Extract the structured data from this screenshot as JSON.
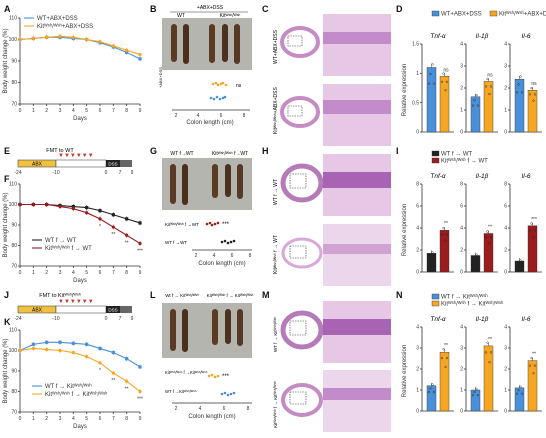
{
  "figure": {
    "panels": {
      "A": {
        "label": "A"
      },
      "B": {
        "label": "B"
      },
      "C": {
        "label": "C"
      },
      "D": {
        "label": "D"
      },
      "E": {
        "label": "E"
      },
      "F": {
        "label": "F"
      },
      "G": {
        "label": "G"
      },
      "H": {
        "label": "H"
      },
      "I": {
        "label": "I"
      },
      "J": {
        "label": "J"
      },
      "K": {
        "label": "K"
      },
      "L": {
        "label": "L"
      },
      "M": {
        "label": "M"
      },
      "N": {
        "label": "N"
      }
    },
    "texts": {
      "B_header": "+ABX+DSS",
      "B_wt": "WT",
      "B_kit": "Kitᵂˢʰ/ᵂˢʰ",
      "B_strip_label": "+ABX+DSS",
      "B_ns": "ns",
      "C_row1": "WT+ABX+DSS",
      "C_row2": "Kitᵂˢʰ/ᵂˢʰ+ABX+DSS",
      "E_top": "FMT to WT",
      "E_abx": "ABX",
      "E_dss": "DSS",
      "E_ticks": [
        "-24",
        "-10",
        "0",
        "7",
        "9"
      ],
      "G_header_a": "WT f→WT",
      "G_header_b": "Kitᵂˢʰ/ᵂˢʰ f→WT",
      "G_row1": "Kitᵂˢʰ/ᵂˢʰ f →WT",
      "G_row2": "WT f →WT",
      "G_sig": "***",
      "H_row1": "WT f → WT",
      "H_row2": "Kitᵂˢʰ/ᵂˢʰ f → WT",
      "J_top": "FMT to Kitᵂˢʰ/ᵂˢʰ",
      "L_header_a": "Wt f → Kitᵂˢʰ/ᵂˢʰ",
      "L_header_b": "Kitᵂˢʰ/ᵂˢʰ f → Kitᵂˢʰ/ᵂˢʰ",
      "L_row1": "Kitᵂˢʰ/ᵂˢʰ f →Kitᵂˢʰ/ᵂˢʰ",
      "L_row2": "WT f →Kitᵂˢʰ/ᵂˢʰ",
      "M_row1": "WT f → Kitᵂˢʰ/ᵂˢʰ",
      "M_row2": "Kitᵂˢʰ/ᵂˢʰ f → Kitᵂˢʰ/ᵂˢʰ",
      "colon_xlabel": "Colon length (cm)",
      "days_label": "Days",
      "bw_label": "Body weight change (%)",
      "rel_expr": "Relative expression",
      "genes": [
        "Tnf-α",
        "Il-1β",
        "Il-6"
      ]
    },
    "colors": {
      "blue": "#4a90d9",
      "orange": "#f5a623",
      "black": "#222222",
      "darkred": "#9b1c1c",
      "abx_bar": "#f0c040",
      "he_pink": "#d8a8d8"
    }
  },
  "chart_data": [
    {
      "panel": "A",
      "type": "line",
      "xlabel": "Days",
      "ylabel": "Body weight change (%)",
      "xlim": [
        0,
        9
      ],
      "ylim": [
        70,
        110
      ],
      "xticks": [
        0,
        1,
        2,
        3,
        4,
        5,
        6,
        7,
        8,
        9
      ],
      "yticks": [
        70,
        80,
        90,
        100,
        110
      ],
      "x": [
        0,
        1,
        2,
        3,
        4,
        5,
        6,
        7,
        8,
        9
      ],
      "series": [
        {
          "name": "WT+ABX+DSS",
          "color": "#4a90d9",
          "values": [
            100,
            100.5,
            101,
            101,
            100.5,
            100,
            98.5,
            96.5,
            94,
            91
          ]
        },
        {
          "name": "Kitᵂˢʰ/ᵂˢʰ+ABX+DSS",
          "color": "#f5a623",
          "values": [
            100,
            100.5,
            101,
            101.5,
            101,
            100,
            99,
            97,
            95,
            93
          ]
        }
      ]
    },
    {
      "panel": "D",
      "type": "bar",
      "ylabel": "Relative expression",
      "subplots": [
        {
          "gene": "Tnf-α",
          "ylim": [
            0,
            1.5
          ],
          "yticks": [
            0,
            0.5,
            1.0,
            1.5
          ],
          "values": [
            1.1,
            0.95
          ],
          "sig": "ns"
        },
        {
          "gene": "Il-1β",
          "ylim": [
            0,
            4
          ],
          "yticks": [
            0,
            1,
            2,
            3,
            4
          ],
          "values": [
            1.6,
            2.3
          ],
          "sig": "ns"
        },
        {
          "gene": "Il-6",
          "ylim": [
            0,
            4
          ],
          "yticks": [
            0,
            1,
            2,
            3,
            4
          ],
          "values": [
            2.4,
            1.9
          ],
          "sig": "ns"
        }
      ],
      "series": [
        {
          "name": "WT+ABX+DSS",
          "color": "#4a90d9"
        },
        {
          "name": "Kitᵂˢʰ/ᵂˢʰ+ABX+DSS",
          "color": "#f5a623"
        }
      ]
    },
    {
      "panel": "F",
      "type": "line",
      "xlabel": "Days",
      "ylabel": "Body weight change (%)",
      "xlim": [
        0,
        9
      ],
      "ylim": [
        70,
        110
      ],
      "xticks": [
        0,
        1,
        2,
        3,
        4,
        5,
        6,
        7,
        8,
        9
      ],
      "yticks": [
        70,
        80,
        90,
        100,
        110
      ],
      "x": [
        0,
        1,
        2,
        3,
        4,
        5,
        6,
        7,
        8,
        9
      ],
      "series": [
        {
          "name": "WT f → WT",
          "color": "#222222",
          "values": [
            100,
            100,
            100,
            99.5,
            99,
            98.5,
            97,
            95,
            93,
            91
          ]
        },
        {
          "name": "Kitᵂˢʰ/ᵂˢʰ f → WT",
          "color": "#9b1c1c",
          "values": [
            100,
            100,
            100,
            99,
            98,
            96,
            93,
            89,
            85,
            81
          ]
        }
      ],
      "sig": [
        "*",
        "**",
        "**",
        "***"
      ]
    },
    {
      "panel": "I",
      "type": "bar",
      "ylabel": "Relative expression",
      "subplots": [
        {
          "gene": "Tnf-α",
          "ylim": [
            0,
            8
          ],
          "yticks": [
            0,
            2,
            4,
            6,
            8
          ],
          "values": [
            1.7,
            3.8
          ],
          "sig": "**"
        },
        {
          "gene": "Il-1β",
          "ylim": [
            0,
            8
          ],
          "yticks": [
            0,
            2,
            4,
            6,
            8
          ],
          "values": [
            1.5,
            3.5
          ],
          "sig": "**"
        },
        {
          "gene": "Il-6",
          "ylim": [
            0,
            8
          ],
          "yticks": [
            0,
            2,
            4,
            6,
            8
          ],
          "values": [
            1.0,
            4.2
          ],
          "sig": "***"
        }
      ],
      "series": [
        {
          "name": "WT f → WT",
          "color": "#222222"
        },
        {
          "name": "Kitᵂˢʰ/ᵂˢʰ f → WT",
          "color": "#9b1c1c"
        }
      ]
    },
    {
      "panel": "K",
      "type": "line",
      "xlabel": "Days",
      "ylabel": "Body weight change (%)",
      "xlim": [
        0,
        9
      ],
      "ylim": [
        70,
        110
      ],
      "xticks": [
        0,
        1,
        2,
        3,
        4,
        5,
        6,
        7,
        8,
        9
      ],
      "yticks": [
        70,
        80,
        90,
        100,
        110
      ],
      "x": [
        0,
        1,
        2,
        3,
        4,
        5,
        6,
        7,
        8,
        9
      ],
      "series": [
        {
          "name": "WT f → Kitᵂˢʰ/ᵂˢʰ",
          "color": "#4a90d9",
          "values": [
            100,
            103,
            104,
            104,
            103.5,
            103,
            101,
            99,
            96,
            92
          ]
        },
        {
          "name": "Kitᵂˢʰ/ᵂˢʰ f → Kitᵂˢʰ/ᵂˢʰ",
          "color": "#f5a623",
          "values": [
            100,
            101,
            100.5,
            100,
            99,
            97,
            94,
            89,
            85,
            80
          ]
        }
      ],
      "sig": [
        "*",
        "**",
        "**",
        "***"
      ]
    },
    {
      "panel": "N",
      "type": "bar",
      "ylabel": "Relative expression",
      "subplots": [
        {
          "gene": "Tnf-α",
          "ylim": [
            0,
            4
          ],
          "yticks": [
            0,
            1,
            2,
            3,
            4
          ],
          "values": [
            1.2,
            2.8
          ],
          "sig": "**"
        },
        {
          "gene": "Il-1β",
          "ylim": [
            0,
            4
          ],
          "yticks": [
            0,
            1,
            2,
            3,
            4
          ],
          "values": [
            1.0,
            3.1
          ],
          "sig": "**"
        },
        {
          "gene": "Il-6",
          "ylim": [
            0,
            4
          ],
          "yticks": [
            0,
            1,
            2,
            3,
            4
          ],
          "values": [
            1.1,
            2.4
          ],
          "sig": "**"
        }
      ],
      "series": [
        {
          "name": "WT f → Kitᵂˢʰ/ᵂˢʰ",
          "color": "#4a90d9"
        },
        {
          "name": "Kitᵂˢʰ/ᵂˢʰ f → Kitᵂˢʰ/ᵂˢʰ",
          "color": "#f5a623"
        }
      ]
    }
  ]
}
